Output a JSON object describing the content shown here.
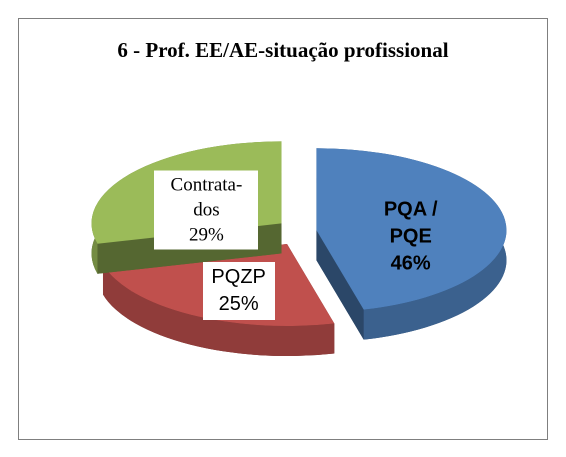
{
  "chart_data": {
    "type": "pie",
    "title": "6 - Prof. EE/AE-situação profissional",
    "categories": [
      "PQA / PQE",
      "PQZP",
      "Contrata-dos"
    ],
    "values": [
      46,
      25,
      29
    ],
    "value_labels": [
      "46%",
      "25%",
      "29%"
    ],
    "colors": [
      "#4f81bd",
      "#c0504d",
      "#9bbb59"
    ],
    "three_d": true,
    "exploded": true
  }
}
